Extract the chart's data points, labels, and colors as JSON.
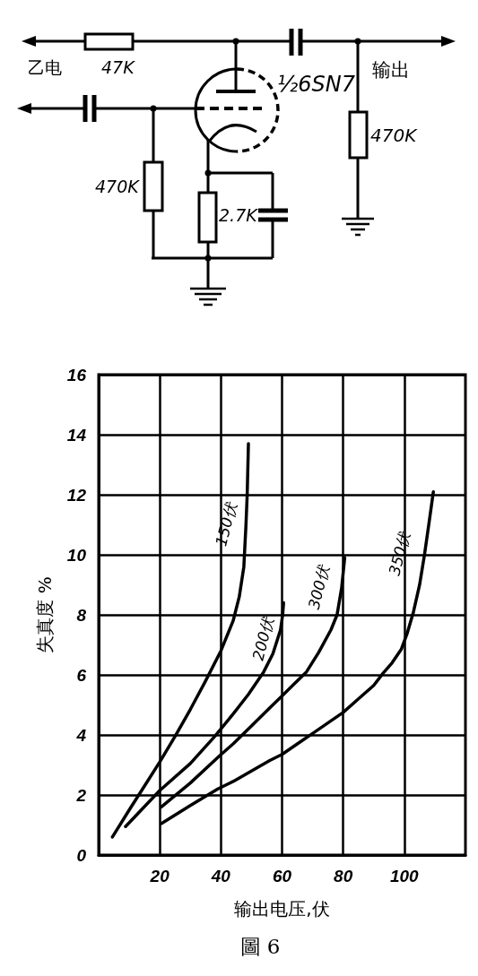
{
  "chart_data": [
    {
      "type": "other",
      "annotations": [
        "乙电",
        "47K",
        "½6SN7",
        "输出",
        "470K",
        "470K",
        "2.7K"
      ]
    },
    {
      "type": "line",
      "xlabel": "输出电压,伏",
      "ylabel": "失真度 %",
      "annotations": [
        "圖 6"
      ],
      "xlim": [
        0,
        120
      ],
      "ylim": [
        0,
        16
      ],
      "xticks": [
        20,
        40,
        60,
        80,
        100
      ],
      "yticks": [
        0,
        2,
        4,
        6,
        8,
        10,
        12,
        14,
        16
      ],
      "grid": true,
      "marker": "none",
      "line_style": "solid",
      "series": [
        {
          "name": "150伏",
          "color": "#000000",
          "x": [
            4.5,
            10,
            15,
            20,
            25,
            30,
            35,
            40,
            44,
            46,
            47.5,
            48.2,
            48.6,
            49
          ],
          "values": [
            0.6,
            1.5,
            2.3,
            3.1,
            3.95,
            4.85,
            5.8,
            6.8,
            7.8,
            8.6,
            9.6,
            11,
            12,
            13.7
          ]
        },
        {
          "name": "200伏",
          "color": "#000000",
          "x": [
            8.8,
            20,
            30,
            38,
            44,
            49,
            54,
            57,
            59.5,
            60.2,
            60.5
          ],
          "values": [
            0.95,
            2.15,
            3.05,
            3.95,
            4.7,
            5.35,
            6.1,
            6.7,
            7.5,
            8,
            8.4
          ]
        },
        {
          "name": "300伏",
          "color": "#000000",
          "x": [
            20.5,
            30,
            39.5,
            44,
            50,
            56,
            60,
            64,
            68,
            72,
            76,
            78,
            79.5,
            80.5
          ],
          "values": [
            1.6,
            2.4,
            3.3,
            3.7,
            4.3,
            4.9,
            5.3,
            5.7,
            6.1,
            6.75,
            7.5,
            8,
            8.9,
            9.9
          ]
        },
        {
          "name": "350伏",
          "color": "#000000",
          "x": [
            20.6,
            30,
            39,
            44,
            50,
            56,
            60,
            65,
            70,
            75,
            80,
            85,
            90,
            93,
            96,
            99,
            101,
            103,
            105,
            106.6,
            108,
            109.5
          ],
          "values": [
            1.05,
            1.65,
            2.2,
            2.45,
            2.8,
            3.15,
            3.35,
            3.7,
            4.05,
            4.4,
            4.75,
            5.2,
            5.65,
            6.05,
            6.4,
            6.85,
            7.4,
            8.1,
            9,
            10,
            11,
            12.1
          ]
        }
      ]
    }
  ]
}
